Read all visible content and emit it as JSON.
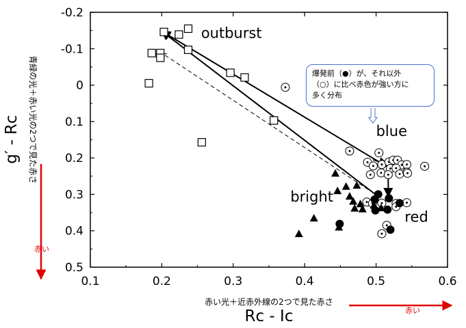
{
  "chart_data": {
    "type": "scatter",
    "title": "",
    "xlabel": "Rc - Ic",
    "ylabel": "g′ - Rc",
    "xlabel_jp": "赤い光＋近赤外線の2つで見た赤さ",
    "ylabel_jp": "青緑の光＋赤い光の2つで見た赤さ",
    "xlim": [
      0.1,
      0.6
    ],
    "ylim": [
      -0.2,
      0.5
    ],
    "y_inverted": true,
    "x_ticks": [
      "0.1",
      "0.2",
      "0.3",
      "0.4",
      "0.5",
      "0.6"
    ],
    "y_ticks": [
      "-0.2",
      "-0.1",
      "0",
      "0.1",
      "0.2",
      "0.3",
      "0.4",
      "0.5"
    ],
    "series": [
      {
        "marker": "open-square",
        "points": [
          [
            0.203,
            -0.146
          ],
          [
            0.224,
            -0.139
          ],
          [
            0.237,
            -0.155
          ],
          [
            0.186,
            -0.088
          ],
          [
            0.198,
            -0.088
          ],
          [
            0.198,
            -0.075
          ],
          [
            0.237,
            -0.097
          ],
          [
            0.296,
            -0.034
          ],
          [
            0.316,
            -0.021
          ],
          [
            0.182,
            -0.005
          ],
          [
            0.357,
            0.097
          ],
          [
            0.256,
            0.157
          ]
        ]
      },
      {
        "marker": "open-circle",
        "points": [
          [
            0.373,
            0.006
          ],
          [
            0.463,
            0.181
          ],
          [
            0.504,
            0.186
          ],
          [
            0.488,
            0.212
          ],
          [
            0.496,
            0.222
          ],
          [
            0.508,
            0.218
          ],
          [
            0.518,
            0.211
          ],
          [
            0.524,
            0.206
          ],
          [
            0.53,
            0.206
          ],
          [
            0.536,
            0.219
          ],
          [
            0.543,
            0.218
          ],
          [
            0.52,
            0.229
          ],
          [
            0.528,
            0.228
          ],
          [
            0.568,
            0.223
          ],
          [
            0.492,
            0.246
          ],
          [
            0.507,
            0.241
          ],
          [
            0.517,
            0.246
          ],
          [
            0.533,
            0.244
          ],
          [
            0.543,
            0.239
          ],
          [
            0.544,
            0.242
          ],
          [
            0.487,
            0.321
          ],
          [
            0.495,
            0.325
          ],
          [
            0.508,
            0.324
          ],
          [
            0.528,
            0.325
          ],
          [
            0.543,
            0.323
          ],
          [
            0.528,
            0.334
          ],
          [
            0.515,
            0.385
          ],
          [
            0.508,
            0.408
          ]
        ]
      },
      {
        "marker": "filled-circle",
        "points": [
          [
            0.498,
            0.314
          ],
          [
            0.503,
            0.3
          ],
          [
            0.518,
            0.311
          ],
          [
            0.533,
            0.324
          ],
          [
            0.499,
            0.344
          ],
          [
            0.516,
            0.342
          ],
          [
            0.449,
            0.381
          ],
          [
            0.52,
            0.397
          ]
        ]
      },
      {
        "marker": "filled-triangle",
        "points": [
          [
            0.443,
            0.242
          ],
          [
            0.458,
            0.278
          ],
          [
            0.473,
            0.275
          ],
          [
            0.446,
            0.29
          ],
          [
            0.463,
            0.305
          ],
          [
            0.468,
            0.319
          ],
          [
            0.478,
            0.326
          ],
          [
            0.47,
            0.338
          ],
          [
            0.481,
            0.34
          ],
          [
            0.497,
            0.33
          ],
          [
            0.507,
            0.337
          ],
          [
            0.413,
            0.365
          ],
          [
            0.448,
            0.39
          ],
          [
            0.392,
            0.408
          ]
        ]
      }
    ],
    "arrows": [
      {
        "style": "solid",
        "from": [
          0.517,
          0.226
        ],
        "to": [
          0.2,
          -0.148
        ]
      },
      {
        "style": "solid",
        "from": [
          0.503,
          0.306
        ],
        "to": [
          0.2,
          -0.148
        ]
      },
      {
        "style": "dashed",
        "from": [
          0.489,
          0.287
        ],
        "to": [
          0.2,
          -0.088
        ]
      },
      {
        "style": "solid",
        "from": [
          0.517,
          0.226
        ],
        "to": [
          0.517,
          0.306
        ]
      },
      {
        "style": "solid",
        "from": [
          0.496,
          0.205
        ],
        "to": [
          0.516,
          0.218
        ]
      }
    ],
    "annotations": [
      {
        "text": "outburst",
        "at": [
          0.255,
          -0.13
        ]
      },
      {
        "text": "blue",
        "at": [
          0.5,
          0.14
        ]
      },
      {
        "text": "bright",
        "at": [
          0.38,
          0.32
        ]
      },
      {
        "text": "red",
        "at": [
          0.54,
          0.375
        ]
      }
    ],
    "note": {
      "lines": [
        "爆発前（●）が、それ以外",
        "（○）に比べ赤色が強い方に",
        "多く分布"
      ]
    },
    "red_arrow_label": "赤い",
    "colors": {
      "red_arrow": "#e00000",
      "note_border": "#4a6fd0",
      "ink": "#000000"
    }
  }
}
